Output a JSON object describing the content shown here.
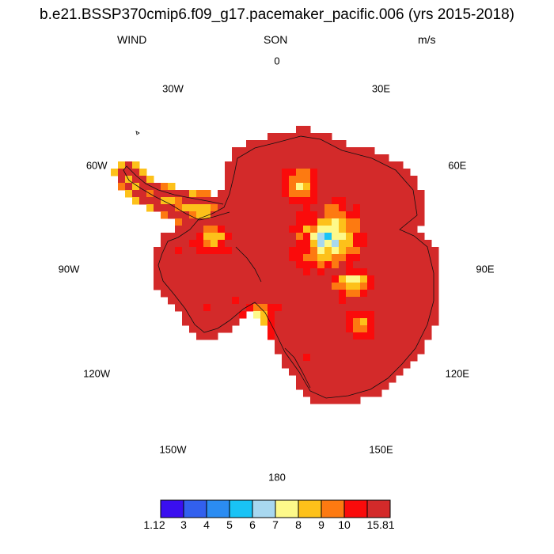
{
  "title": "b.e21.BSSP370cmip6.f09_g17.pacemaker_pacific.006 (yrs 2015-2018)",
  "header": {
    "left": "WIND",
    "center": "SON",
    "right": "m/s"
  },
  "longitude_labels": [
    {
      "label": "0",
      "lon": 0
    },
    {
      "label": "30E",
      "lon": 30
    },
    {
      "label": "60E",
      "lon": 60
    },
    {
      "label": "90E",
      "lon": 90
    },
    {
      "label": "120E",
      "lon": 120
    },
    {
      "label": "150E",
      "lon": 150
    },
    {
      "label": "180",
      "lon": 180
    },
    {
      "label": "150W",
      "lon": -150
    },
    {
      "label": "120W",
      "lon": -120
    },
    {
      "label": "90W",
      "lon": -90
    },
    {
      "label": "60W",
      "lon": -60
    },
    {
      "label": "30W",
      "lon": -30
    }
  ],
  "colorbar": {
    "colors": [
      "#3a0ff0",
      "#3260ee",
      "#2b8cf2",
      "#19c3f5",
      "#a8d8f0",
      "#fdf98a",
      "#fdc11a",
      "#fd7a11",
      "#fa0b0b",
      "#d32a2a"
    ],
    "labels": [
      "1.12",
      "3",
      "4",
      "5",
      "6",
      "7",
      "8",
      "9",
      "10",
      "15.81"
    ]
  }
}
